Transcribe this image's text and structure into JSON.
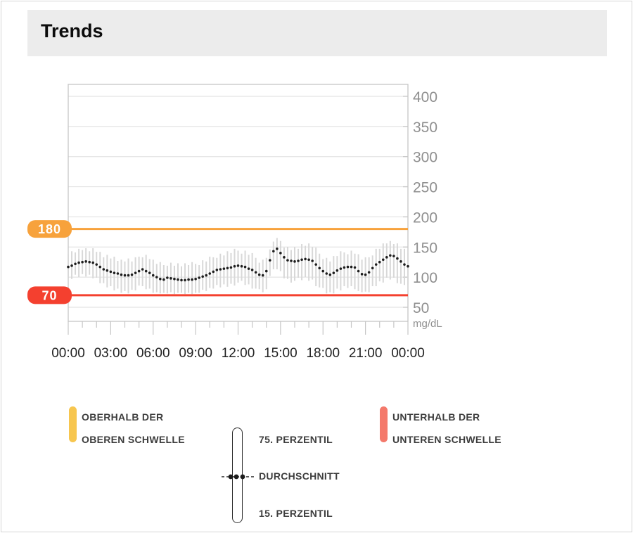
{
  "header": {
    "title": "Trends"
  },
  "chart_data": {
    "type": "line",
    "title": "Trends",
    "y_unit": "mg/dL",
    "y_ticks": [
      400,
      350,
      300,
      250,
      200,
      150,
      100,
      50
    ],
    "ylim": [
      27,
      420
    ],
    "x_labels": [
      "00:00",
      "03:00",
      "06:00",
      "09:00",
      "12:00",
      "15:00",
      "18:00",
      "21:00",
      "00:00"
    ],
    "xlim_hours": [
      0,
      24
    ],
    "grid": true,
    "sample_interval_minutes": 15,
    "thresholds": {
      "upper": {
        "value": 180,
        "label": "180",
        "color": "#f7a23c"
      },
      "lower": {
        "value": 70,
        "label": "70",
        "color": "#f4402f"
      }
    },
    "colors": {
      "average_dots": "#1e1e1e",
      "percentile_bars": "#d8d8d8",
      "gridline": "#dedede",
      "axis": "#c6c6c6",
      "above_range_legend": "#f7c64f",
      "below_range_legend": "#f4796b"
    },
    "series": [
      {
        "name": "durchschnitt",
        "values": [
          117,
          119,
          122,
          124,
          125,
          126,
          125,
          124,
          121,
          117,
          113,
          111,
          109,
          107,
          106,
          104,
          103,
          103,
          104,
          107,
          110,
          113,
          110,
          107,
          103,
          100,
          97,
          96,
          99,
          98,
          97,
          96,
          95,
          95,
          96,
          96,
          97,
          99,
          101,
          103,
          106,
          109,
          112,
          113,
          114,
          115,
          116,
          118,
          119,
          118,
          117,
          114,
          112,
          108,
          104,
          103,
          110,
          128,
          143,
          147,
          140,
          133,
          128,
          127,
          126,
          127,
          129,
          130,
          129,
          127,
          121,
          115,
          110,
          106,
          104,
          107,
          111,
          114,
          116,
          117,
          117,
          116,
          110,
          105,
          104,
          108,
          115,
          121,
          125,
          129,
          133,
          136,
          135,
          131,
          126,
          121,
          118
        ]
      },
      {
        "name": "75_perzentil",
        "values": [
          138,
          143,
          141,
          147,
          145,
          148,
          143,
          148,
          142,
          142,
          133,
          137,
          131,
          134,
          127,
          129,
          126,
          131,
          126,
          133,
          134,
          133,
          137,
          130,
          129,
          122,
          125,
          120,
          119,
          124,
          119,
          123,
          118,
          123,
          120,
          125,
          122,
          120,
          128,
          126,
          134,
          133,
          132,
          139,
          136,
          143,
          140,
          147,
          144,
          139,
          144,
          137,
          140,
          132,
          124,
          129,
          132,
          146,
          159,
          165,
          160,
          149,
          150,
          145,
          150,
          147,
          155,
          152,
          156,
          150,
          149,
          139,
          130,
          132,
          126,
          135,
          135,
          143,
          141,
          138,
          144,
          139,
          138,
          129,
          133,
          133,
          136,
          147,
          147,
          156,
          156,
          160,
          155,
          156,
          147,
          147,
          140
        ]
      },
      {
        "name": "15_perzentil",
        "values": [
          100,
          97,
          104,
          100,
          105,
          101,
          104,
          98,
          99,
          90,
          90,
          83,
          85,
          78,
          81,
          74,
          77,
          73,
          79,
          78,
          86,
          85,
          80,
          81,
          74,
          75,
          73,
          74,
          73,
          75,
          72,
          74,
          74,
          72,
          74,
          72,
          74,
          74,
          79,
          77,
          82,
          81,
          87,
          83,
          88,
          84,
          89,
          86,
          91,
          94,
          87,
          88,
          81,
          81,
          80,
          75,
          80,
          102,
          113,
          113,
          110,
          98,
          97,
          91,
          94,
          99,
          95,
          100,
          94,
          96,
          85,
          83,
          82,
          73,
          75,
          73,
          81,
          78,
          85,
          82,
          85,
          80,
          77,
          75,
          76,
          75,
          85,
          85,
          93,
          91,
          99,
          96,
          99,
          90,
          89,
          87,
          88
        ]
      }
    ],
    "legend_position": "bottom"
  },
  "legend": {
    "above": {
      "line1": "OBERHALB DER",
      "line2": "OBEREN SCHWELLE",
      "color": "#f7c64f"
    },
    "percentiles": {
      "top": "75. PERZENTIL",
      "middle": "DURCHSCHNITT",
      "bottom": "15. PERZENTIL"
    },
    "below": {
      "line1": "UNTERHALB DER",
      "line2": "UNTEREN SCHWELLE",
      "color": "#f4796b"
    }
  }
}
